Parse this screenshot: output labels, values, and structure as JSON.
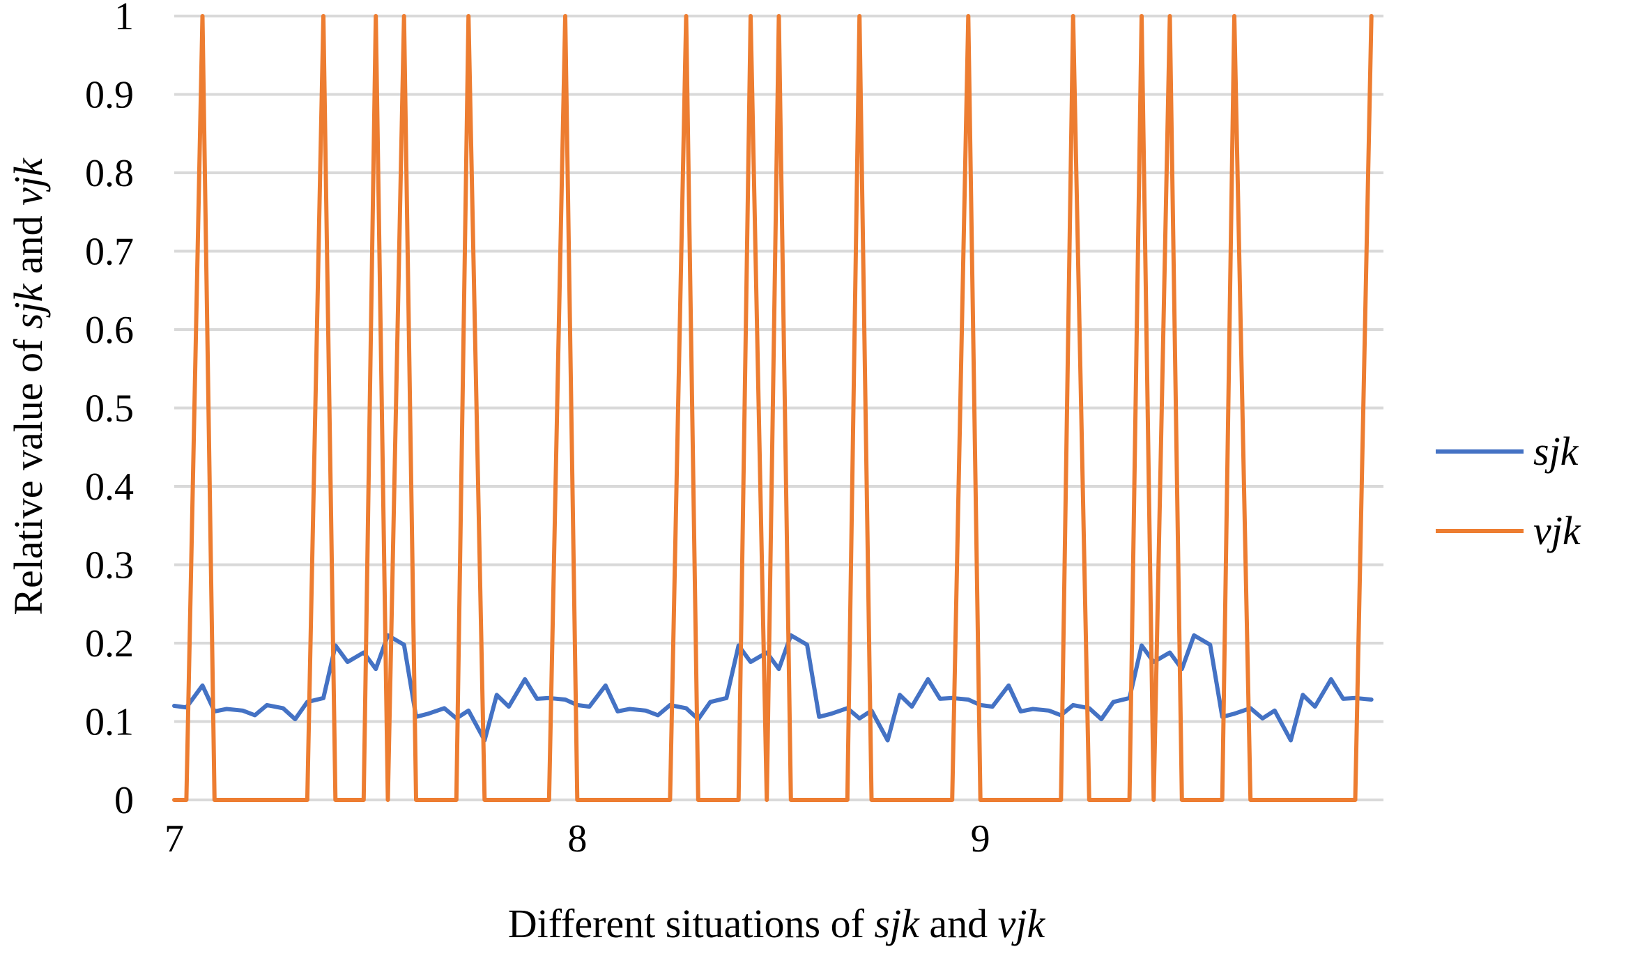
{
  "chart_data": {
    "type": "line",
    "title": "",
    "xlabel": {
      "parts": [
        {
          "text": "Different situations of ",
          "italic": false
        },
        {
          "text": "sjk",
          "italic": true
        },
        {
          "text": " and ",
          "italic": false
        },
        {
          "text": "vjk",
          "italic": true
        }
      ]
    },
    "ylabel": {
      "parts": [
        {
          "text": "Relative value of ",
          "italic": false
        },
        {
          "text": "sjk",
          "italic": true
        },
        {
          "text": " and ",
          "italic": false
        },
        {
          "text": "vjk",
          "italic": true
        }
      ]
    },
    "ylim": [
      0,
      1
    ],
    "y_ticks": [
      "0",
      "0.1",
      "0.2",
      "0.3",
      "0.4",
      "0.5",
      "0.6",
      "0.7",
      "0.8",
      "0.9",
      "1"
    ],
    "y_tick_values": [
      0,
      0.1,
      0.2,
      0.3,
      0.4,
      0.5,
      0.6,
      0.7,
      0.8,
      0.9,
      1
    ],
    "x_ticks": [
      "7",
      "8",
      "9"
    ],
    "x_tick_values": [
      7,
      8,
      9
    ],
    "xlim": [
      7,
      10
    ],
    "grid": "horizontal",
    "legend_position": "right",
    "x": [
      7.0,
      7.03,
      7.07,
      7.1,
      7.13,
      7.17,
      7.2,
      7.23,
      7.27,
      7.3,
      7.33,
      7.37,
      7.4,
      7.43,
      7.47,
      7.5,
      7.53,
      7.57,
      7.6,
      7.63,
      7.67,
      7.7,
      7.73,
      7.77,
      7.8,
      7.83,
      7.87,
      7.9,
      7.93,
      7.97,
      8.0,
      8.03,
      8.07,
      8.1,
      8.13,
      8.17,
      8.2,
      8.23,
      8.27,
      8.3,
      8.33,
      8.37,
      8.4,
      8.43,
      8.47,
      8.5,
      8.53,
      8.57,
      8.6,
      8.63,
      8.67,
      8.7,
      8.73,
      8.77,
      8.8,
      8.83,
      8.87,
      8.9,
      8.93,
      8.97,
      9.0,
      9.03,
      9.07,
      9.1,
      9.13,
      9.17,
      9.2,
      9.23,
      9.27,
      9.3,
      9.33,
      9.37,
      9.4,
      9.43,
      9.47,
      9.5,
      9.53,
      9.57,
      9.6,
      9.63,
      9.67,
      9.7,
      9.73,
      9.77,
      9.8,
      9.83,
      9.87,
      9.9,
      9.93,
      9.97
    ],
    "series": [
      {
        "name": "sjk",
        "color": "#4472c4",
        "values": [
          0.12,
          0.118,
          0.146,
          0.113,
          0.116,
          0.114,
          0.108,
          0.121,
          0.117,
          0.103,
          0.125,
          0.13,
          0.197,
          0.176,
          0.188,
          0.167,
          0.21,
          0.198,
          0.106,
          0.11,
          0.117,
          0.104,
          0.114,
          0.076,
          0.134,
          0.119,
          0.154,
          0.129,
          0.13,
          0.128,
          0.121,
          0.119,
          0.146,
          0.113,
          0.116,
          0.114,
          0.108,
          0.121,
          0.117,
          0.103,
          0.125,
          0.13,
          0.197,
          0.176,
          0.188,
          0.167,
          0.21,
          0.198,
          0.106,
          0.11,
          0.117,
          0.104,
          0.114,
          0.076,
          0.134,
          0.119,
          0.154,
          0.129,
          0.13,
          0.128,
          0.121,
          0.119,
          0.146,
          0.113,
          0.116,
          0.114,
          0.108,
          0.121,
          0.117,
          0.103,
          0.125,
          0.13,
          0.197,
          0.176,
          0.188,
          0.167,
          0.21,
          0.198,
          0.106,
          0.11,
          0.117,
          0.104,
          0.114,
          0.076,
          0.134,
          0.119,
          0.154,
          0.129,
          0.13,
          0.128
        ]
      },
      {
        "name": "vjk",
        "color": "#ed7d31",
        "values": [
          0,
          0,
          1,
          0,
          0,
          0,
          0,
          0,
          0,
          0,
          0,
          1,
          0,
          0,
          0,
          1,
          0,
          1,
          0,
          0,
          0,
          0,
          1,
          0,
          0,
          0,
          0,
          0,
          0,
          1,
          0,
          0,
          0,
          0,
          0,
          0,
          0,
          0,
          1,
          0,
          0,
          0,
          0,
          1,
          0,
          1,
          0,
          0,
          0,
          0,
          0,
          1,
          0,
          0,
          0,
          0,
          0,
          0,
          0,
          1,
          0,
          0,
          0,
          0,
          0,
          0,
          0,
          1,
          0,
          0,
          0,
          0,
          1,
          0,
          1,
          0,
          0,
          0,
          0,
          1,
          0,
          0,
          0,
          0,
          0,
          0,
          0,
          0,
          0,
          1
        ]
      }
    ]
  }
}
